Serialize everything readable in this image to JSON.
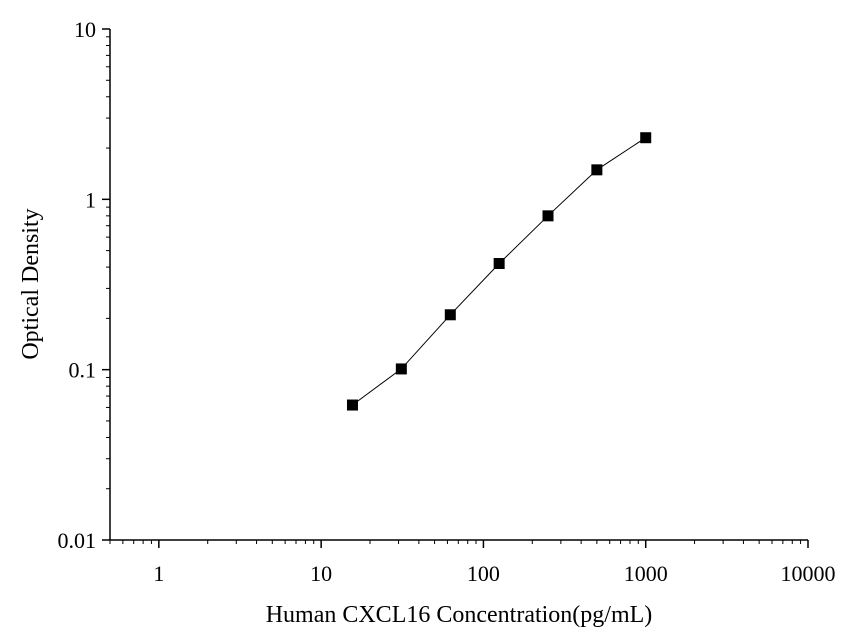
{
  "chart_data": {
    "type": "scatter",
    "title": "",
    "xlabel": "Human CXCL16 Concentration(pg/mL)",
    "ylabel": "Optical Density",
    "x_scale": "log",
    "y_scale": "log",
    "xlim": [
      0.5,
      10000
    ],
    "ylim": [
      0.01,
      10
    ],
    "x_ticks": [
      "1",
      "10",
      "100",
      "1000",
      "10000"
    ],
    "y_ticks": [
      "0.01",
      "0.1",
      "1",
      "10"
    ],
    "grid": false,
    "legend": "none",
    "colors": {
      "marker": "#000000",
      "line": "#000000",
      "axis": "#000000"
    },
    "series": [
      {
        "marker": "square",
        "connected": true,
        "x": [
          15.6,
          31.2,
          62.5,
          125,
          250,
          500,
          1000
        ],
        "y": [
          0.062,
          0.101,
          0.21,
          0.42,
          0.8,
          1.49,
          2.3
        ]
      }
    ]
  }
}
